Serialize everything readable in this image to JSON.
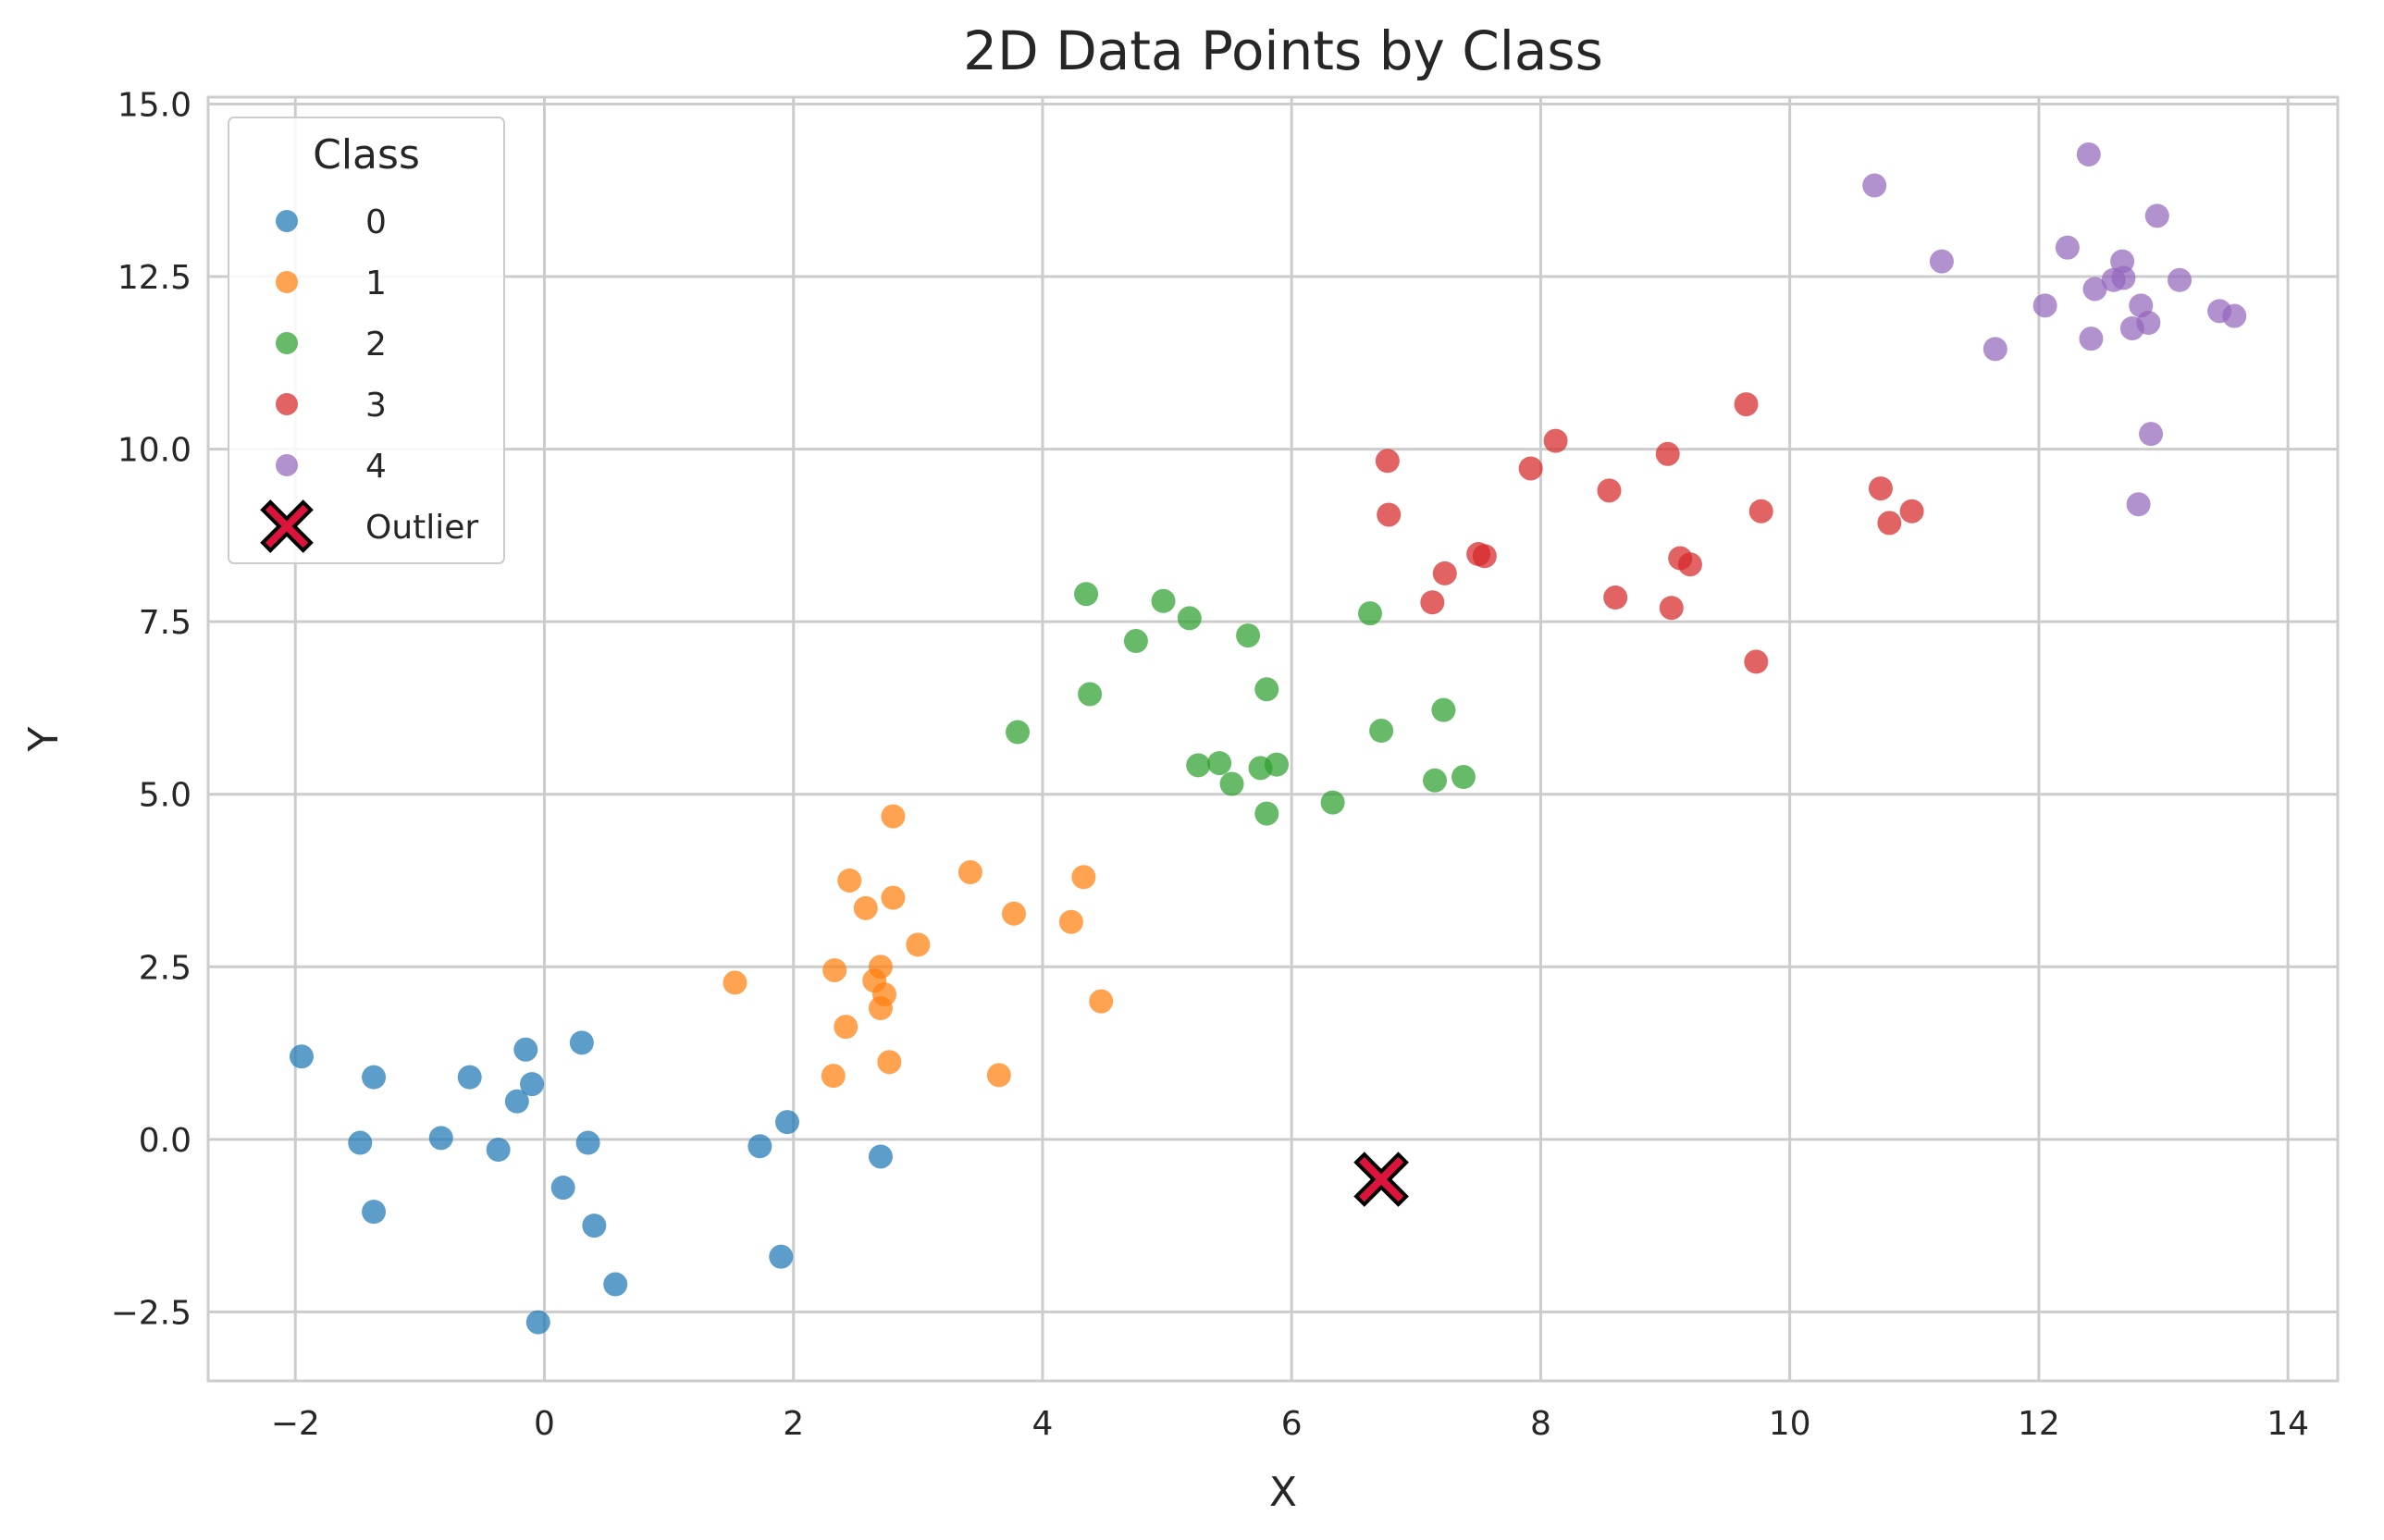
{
  "chart_data": {
    "type": "scatter",
    "title": "2D Data Points by Class",
    "xlabel": "X",
    "ylabel": "Y",
    "xlim": [
      -2.7,
      14.4
    ],
    "ylim": [
      -3.5,
      15.1
    ],
    "x_ticks": [
      -2,
      0,
      2,
      4,
      6,
      8,
      10,
      12,
      14
    ],
    "x_tick_labels": [
      "−2",
      "0",
      "2",
      "4",
      "6",
      "8",
      "10",
      "12",
      "14"
    ],
    "y_ticks": [
      -2.5,
      0.0,
      2.5,
      5.0,
      7.5,
      10.0,
      12.5,
      15.0
    ],
    "y_tick_labels": [
      "−2.5",
      "0.0",
      "2.5",
      "5.0",
      "7.5",
      "10.0",
      "12.5",
      "15.0"
    ],
    "grid": true,
    "legend": {
      "title": "Class",
      "placement": "top-left"
    },
    "series": [
      {
        "name": "0",
        "color": "#1f77b4",
        "points": [
          [
            -1.95,
            1.2
          ],
          [
            -1.37,
            0.9
          ],
          [
            -1.48,
            -0.05
          ],
          [
            -1.37,
            -1.05
          ],
          [
            -0.83,
            0.02
          ],
          [
            -0.6,
            0.9
          ],
          [
            -0.37,
            -0.15
          ],
          [
            -0.22,
            0.55
          ],
          [
            -0.15,
            1.3
          ],
          [
            -0.1,
            0.8
          ],
          [
            -0.05,
            -2.65
          ],
          [
            0.15,
            -0.7
          ],
          [
            0.3,
            1.4
          ],
          [
            0.35,
            -0.05
          ],
          [
            0.4,
            -1.25
          ],
          [
            0.57,
            -2.1
          ],
          [
            1.73,
            -0.1
          ],
          [
            1.9,
            -1.7
          ],
          [
            1.95,
            0.25
          ],
          [
            2.7,
            -0.25
          ]
        ]
      },
      {
        "name": "1",
        "color": "#ff7f0e",
        "points": [
          [
            1.53,
            2.27
          ],
          [
            2.32,
            0.92
          ],
          [
            2.33,
            2.45
          ],
          [
            2.42,
            1.63
          ],
          [
            2.45,
            3.75
          ],
          [
            2.58,
            3.35
          ],
          [
            2.65,
            2.3
          ],
          [
            2.7,
            2.5
          ],
          [
            2.7,
            1.9
          ],
          [
            2.73,
            2.1
          ],
          [
            2.77,
            1.12
          ],
          [
            2.8,
            4.68
          ],
          [
            2.8,
            3.5
          ],
          [
            3.0,
            2.82
          ],
          [
            3.42,
            3.87
          ],
          [
            3.65,
            0.93
          ],
          [
            3.77,
            3.27
          ],
          [
            4.23,
            3.15
          ],
          [
            4.33,
            3.8
          ],
          [
            4.47,
            2.0
          ]
        ]
      },
      {
        "name": "2",
        "color": "#2ca02c",
        "points": [
          [
            3.8,
            5.9
          ],
          [
            4.35,
            7.9
          ],
          [
            4.38,
            6.45
          ],
          [
            4.75,
            7.22
          ],
          [
            4.97,
            7.8
          ],
          [
            5.18,
            7.55
          ],
          [
            5.25,
            5.42
          ],
          [
            5.42,
            5.45
          ],
          [
            5.52,
            5.15
          ],
          [
            5.65,
            7.3
          ],
          [
            5.75,
            5.38
          ],
          [
            5.8,
            6.52
          ],
          [
            5.8,
            4.72
          ],
          [
            5.88,
            5.43
          ],
          [
            6.33,
            4.88
          ],
          [
            6.63,
            7.62
          ],
          [
            6.72,
            5.92
          ],
          [
            7.15,
            5.2
          ],
          [
            7.22,
            6.22
          ],
          [
            7.38,
            5.25
          ]
        ]
      },
      {
        "name": "3",
        "color": "#d62728",
        "points": [
          [
            6.77,
            9.83
          ],
          [
            6.78,
            9.05
          ],
          [
            7.13,
            7.78
          ],
          [
            7.23,
            8.2
          ],
          [
            7.5,
            8.48
          ],
          [
            7.55,
            8.45
          ],
          [
            7.92,
            9.72
          ],
          [
            8.12,
            10.12
          ],
          [
            8.55,
            9.4
          ],
          [
            8.6,
            7.85
          ],
          [
            9.02,
            9.93
          ],
          [
            9.05,
            7.7
          ],
          [
            9.12,
            8.42
          ],
          [
            9.2,
            8.33
          ],
          [
            9.65,
            10.65
          ],
          [
            9.73,
            6.92
          ],
          [
            9.77,
            9.1
          ],
          [
            10.73,
            9.43
          ],
          [
            10.8,
            8.93
          ],
          [
            10.98,
            9.1
          ]
        ]
      },
      {
        "name": "4",
        "color": "#9467bd",
        "points": [
          [
            10.68,
            13.82
          ],
          [
            11.22,
            12.72
          ],
          [
            11.65,
            11.45
          ],
          [
            12.05,
            12.08
          ],
          [
            12.23,
            12.92
          ],
          [
            12.4,
            14.27
          ],
          [
            12.42,
            11.6
          ],
          [
            12.45,
            12.32
          ],
          [
            12.6,
            12.45
          ],
          [
            12.67,
            12.72
          ],
          [
            12.68,
            12.48
          ],
          [
            12.75,
            11.75
          ],
          [
            12.8,
            9.2
          ],
          [
            12.82,
            12.08
          ],
          [
            12.88,
            11.83
          ],
          [
            12.9,
            10.22
          ],
          [
            12.95,
            13.38
          ],
          [
            13.13,
            12.45
          ],
          [
            13.45,
            12.0
          ],
          [
            13.57,
            11.93
          ]
        ]
      }
    ],
    "outlier": {
      "name": "Outlier",
      "color": "#dc143c",
      "edge_color": "#000000",
      "point": [
        6.72,
        -0.58
      ]
    }
  }
}
